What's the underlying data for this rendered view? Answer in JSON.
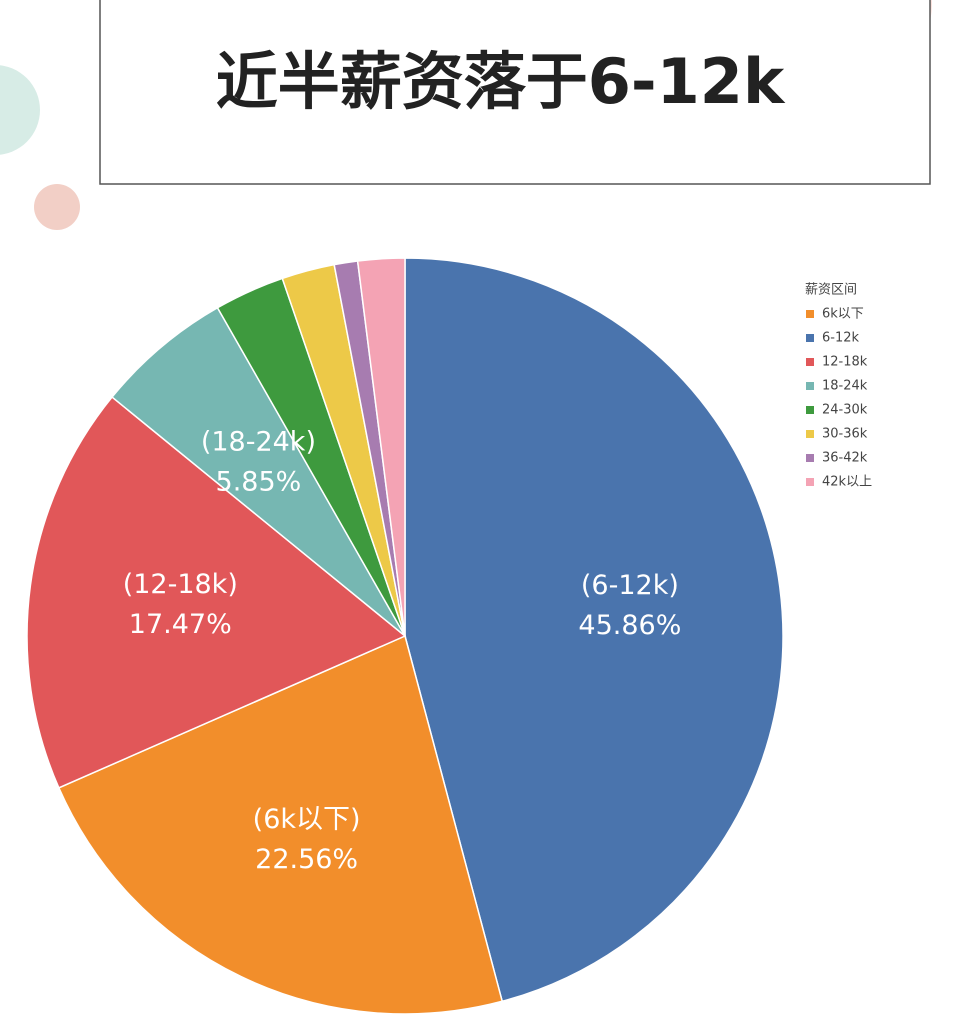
{
  "chart_data": {
    "type": "pie",
    "title": "近半薪资落于6-12k",
    "legend_title": "薪资区间",
    "categories": [
      "6-12k",
      "6k以下",
      "12-18k",
      "18-24k",
      "24-30k",
      "30-36k",
      "36-42k",
      "42k以上"
    ],
    "values": [
      45.86,
      22.56,
      17.47,
      5.85,
      3.0,
      2.26,
      1.0,
      2.0
    ],
    "value_labels": [
      "45.86%",
      "22.56%",
      "17.47%",
      "5.85%",
      null,
      null,
      null,
      null
    ],
    "slice_labels": [
      "(6-12k)",
      "(6k以下)",
      "(12-18k)",
      "(18-24k)",
      null,
      null,
      null,
      null
    ],
    "colors": [
      "#4a74ad",
      "#f28e2b",
      "#e15759",
      "#76b7b2",
      "#3e9a3e",
      "#edc948",
      "#a77cb0",
      "#f4a3b4"
    ],
    "legend": "right"
  }
}
